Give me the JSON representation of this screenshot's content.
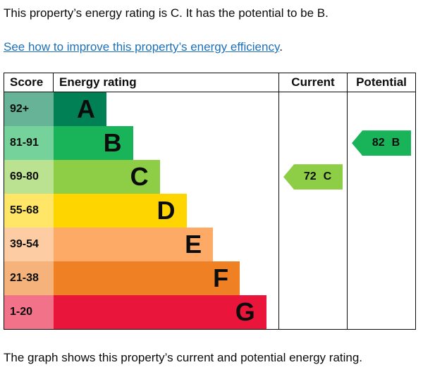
{
  "page": {
    "summary": "This property’s energy rating is C. It has the potential to be B.",
    "improve_link": "See how to improve this property’s energy efficiency",
    "improve_link_suffix": ".",
    "caption": "The graph shows this property’s current and potential energy rating."
  },
  "colors": {
    "text": "#0b0c0c",
    "link": "#1d70b8",
    "border": "#0b0c0c"
  },
  "chart_data": {
    "type": "bar",
    "title": "Energy rating",
    "columns": {
      "score": "Score",
      "rating": "Energy rating",
      "current": "Current",
      "potential": "Potential"
    },
    "bands": [
      {
        "score": "92+",
        "letter": "A",
        "color": "#008054",
        "score_bg": "#66b398",
        "width_pct": 23.5
      },
      {
        "score": "81-91",
        "letter": "B",
        "color": "#19b459",
        "score_bg": "#75d29b",
        "width_pct": 35.3
      },
      {
        "score": "69-80",
        "letter": "C",
        "color": "#8dce46",
        "score_bg": "#bbe290",
        "width_pct": 47.2
      },
      {
        "score": "55-68",
        "letter": "D",
        "color": "#ffd500",
        "score_bg": "#ffe666",
        "width_pct": 59.1
      },
      {
        "score": "39-54",
        "letter": "E",
        "color": "#fcaa65",
        "score_bg": "#fdcca3",
        "width_pct": 70.9
      },
      {
        "score": "21-38",
        "letter": "F",
        "color": "#ef8023",
        "score_bg": "#f5b37b",
        "width_pct": 82.8
      },
      {
        "score": "1-20",
        "letter": "G",
        "color": "#e9153b",
        "score_bg": "#f27389",
        "width_pct": 94.6
      }
    ],
    "current": {
      "value": "72",
      "band": "C",
      "color": "#8dce46",
      "band_row_index": 2
    },
    "potential": {
      "value": "82",
      "band": "B",
      "color": "#19b459",
      "band_row_index": 1
    }
  }
}
